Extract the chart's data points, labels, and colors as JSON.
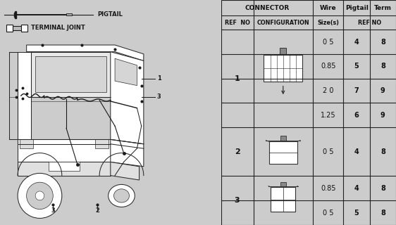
{
  "bg_color": "#d8d8d8",
  "left_bg": "#d0d0d0",
  "right_bg": "#ffffff",
  "pigtail_label": "PIGTAIL",
  "terminal_label": "TERMINAL JOINT",
  "table": {
    "col_header1": "CONNECTOR",
    "col_header2_wire": "Wire",
    "col_header2_pigtail": "Pigtail",
    "col_header2_term": "Term",
    "col_header3_refno": "REF  NO",
    "col_header3_config": "CONFIGURATION",
    "col_header3_size": "Size(s)",
    "col_header3_refno2": "REF NO",
    "rows_ref1": [
      {
        "wire": "0 5",
        "pigtail": "4",
        "term": "8"
      },
      {
        "wire": "0.85",
        "pigtail": "5",
        "term": "8"
      },
      {
        "wire": "2 0",
        "pigtail": "7",
        "term": "9"
      },
      {
        "wire": "1.25",
        "pigtail": "6",
        "term": "9"
      }
    ],
    "rows_ref2": [
      {
        "wire": "0 5",
        "pigtail": "4",
        "term": "8"
      }
    ],
    "rows_ref3": [
      {
        "wire": "0.85",
        "pigtail": "4",
        "term": "8"
      },
      {
        "wire": "0 5",
        "pigtail": "5",
        "term": "8"
      }
    ]
  },
  "line_color": "#333333",
  "text_color": "#111111"
}
